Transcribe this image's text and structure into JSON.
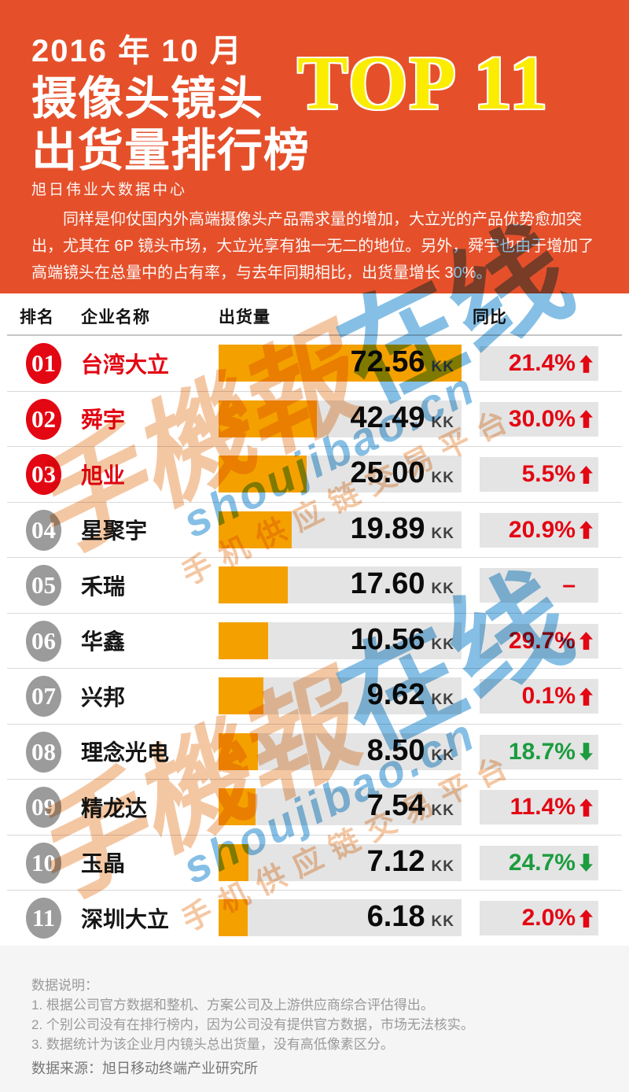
{
  "colors": {
    "header_bg": "#E5502B",
    "yellow": "#FBEC00",
    "red": "#E30613",
    "green": "#1C9C3F",
    "orange": "#F4A100",
    "track_gray": "#E4E4E4",
    "badge_gray": "#9B9B9B",
    "wm_blue": "#5EAADC",
    "wm_peach": "#F2B98C"
  },
  "header": {
    "date_line": "2016 年 10 月",
    "title_line1": "摄像头镜头",
    "title_line2": "出货量排行榜",
    "top_badge": "TOP 11",
    "byline": "旭日伟业大数据中心",
    "intro": "同样是仰仗国内外高端摄像头产品需求量的增加，大立光的产品优势愈加突出，尤其在 6P 镜头市场，大立光享有独一无二的地位。另外，舜宇也由于增加了高端镜头在总量中的占有率，与去年同期相比，出货量增长 30%。"
  },
  "table": {
    "columns": [
      "排名",
      "企业名称",
      "出货量",
      "同比"
    ],
    "unit": "KK",
    "rows": [
      {
        "rank": "01",
        "name": "台湾大立",
        "value": "72.56",
        "bar_pct": 100,
        "yoy": "21.4%",
        "trend": "up",
        "highlight": true
      },
      {
        "rank": "02",
        "name": "舜宇",
        "value": "42.49",
        "bar_pct": 40.5,
        "yoy": "30.0%",
        "trend": "up",
        "highlight": true
      },
      {
        "rank": "03",
        "name": "旭业",
        "value": "25.00",
        "bar_pct": 36.4,
        "yoy": "5.5%",
        "trend": "up",
        "highlight": true
      },
      {
        "rank": "04",
        "name": "星聚宇",
        "value": "19.89",
        "bar_pct": 30,
        "yoy": "20.9%",
        "trend": "up",
        "highlight": false
      },
      {
        "rank": "05",
        "name": "禾瑞",
        "value": "17.60",
        "bar_pct": 28.6,
        "yoy": "–",
        "trend": "flat",
        "highlight": false
      },
      {
        "rank": "06",
        "name": "华鑫",
        "value": "10.56",
        "bar_pct": 20.5,
        "yoy": "29.7%",
        "trend": "up",
        "highlight": false
      },
      {
        "rank": "07",
        "name": "兴邦",
        "value": "9.62",
        "bar_pct": 18.5,
        "yoy": "0.1%",
        "trend": "up",
        "highlight": false
      },
      {
        "rank": "08",
        "name": "理念光电",
        "value": "8.50",
        "bar_pct": 16.2,
        "yoy": "18.7%",
        "trend": "down",
        "highlight": false
      },
      {
        "rank": "09",
        "name": "精龙达",
        "value": "7.54",
        "bar_pct": 15.3,
        "yoy": "11.4%",
        "trend": "up",
        "highlight": false
      },
      {
        "rank": "10",
        "name": "玉晶",
        "value": "7.12",
        "bar_pct": 12.3,
        "yoy": "24.7%",
        "trend": "down",
        "highlight": false
      },
      {
        "rank": "11",
        "name": "深圳大立",
        "value": "6.18",
        "bar_pct": 12,
        "yoy": "2.0%",
        "trend": "up",
        "highlight": false
      }
    ]
  },
  "watermark": {
    "script": "手機報",
    "highlight": "在线",
    "url": "shoujibao.cn",
    "tagline": "手机供应链交易平台"
  },
  "footer": {
    "heading": "数据说明：",
    "notes": [
      "1. 根据公司官方数据和整机、方案公司及上游供应商综合评估得出。",
      "2. 个别公司没有在排行榜内，因为公司没有提供官方数据，市场无法核实。",
      "3. 数据统计为该企业月内镜头总出货量，没有高低像素区分。"
    ],
    "source": "数据来源：旭日移动终端产业研究所"
  },
  "chart_data": {
    "type": "bar",
    "title": "2016年10月 摄像头镜头出货量排行榜 TOP 11",
    "categories": [
      "台湾大立",
      "舜宇",
      "旭业",
      "星聚宇",
      "禾瑞",
      "华鑫",
      "兴邦",
      "理念光电",
      "精龙达",
      "玉晶",
      "深圳大立"
    ],
    "series": [
      {
        "name": "出货量(KK)",
        "values": [
          72.56,
          42.49,
          25.0,
          19.89,
          17.6,
          10.56,
          9.62,
          8.5,
          7.54,
          7.12,
          6.18
        ]
      },
      {
        "name": "同比(%)",
        "values": [
          21.4,
          30.0,
          5.5,
          20.9,
          null,
          29.7,
          0.1,
          -18.7,
          11.4,
          -24.7,
          2.0
        ]
      }
    ],
    "unit": "KK",
    "xlabel": "企业名称",
    "ylabel": "出货量",
    "legend_position": "none",
    "grid": false,
    "orientation": "horizontal"
  }
}
